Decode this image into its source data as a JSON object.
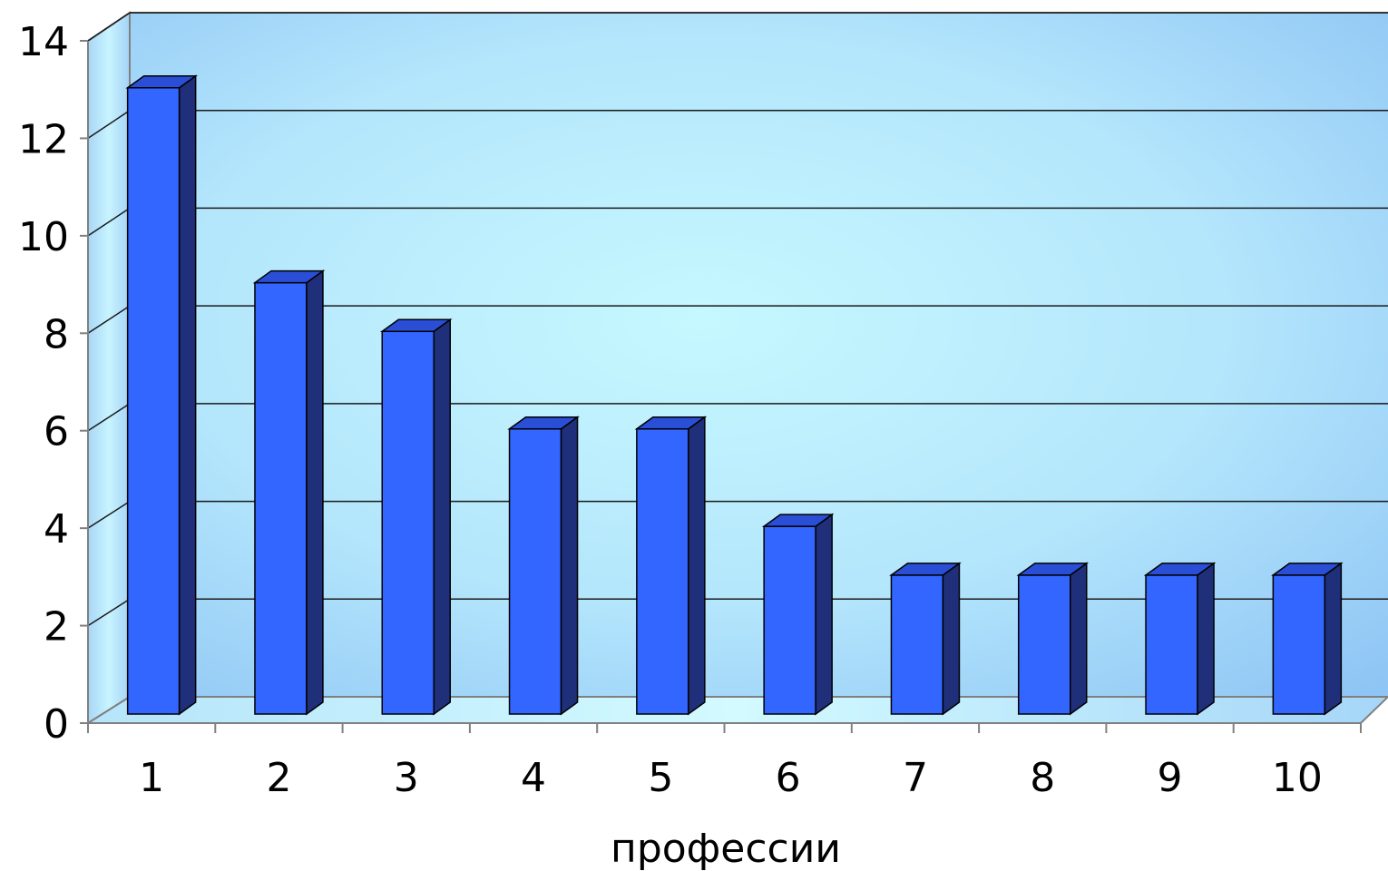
{
  "chart_data": {
    "type": "bar",
    "style": "3d-column",
    "categories": [
      "1",
      "2",
      "3",
      "4",
      "5",
      "6",
      "7",
      "8",
      "9",
      "10"
    ],
    "values": [
      13,
      9,
      8,
      6,
      6,
      4,
      3,
      3,
      3,
      3
    ],
    "xlabel": "профессии",
    "ylabel": "",
    "ylim": [
      0,
      14
    ],
    "yticks": [
      "0",
      "2",
      "4",
      "6",
      "8",
      "10",
      "12",
      "14"
    ],
    "grid": true,
    "legend": "none",
    "colors": {
      "bar_front": "#3366ff",
      "bar_side": "#1f2f7a",
      "bar_top": "#2a4fd6",
      "wall_center": "#c6f6ff",
      "wall_edge": "#8ec4f4"
    }
  }
}
